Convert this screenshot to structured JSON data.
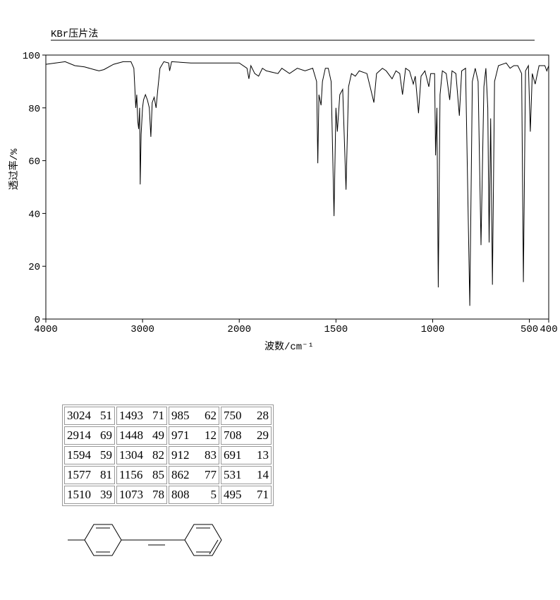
{
  "chart_data": {
    "type": "line",
    "title": "KBr压片法",
    "xlabel": "波数/cm⁻¹",
    "ylabel": "透过率/%",
    "x": [
      4000,
      3900,
      3800,
      3700,
      3600,
      3500,
      3450,
      3400,
      3300,
      3200,
      3120,
      3090,
      3080,
      3070,
      3060,
      3050,
      3040,
      3030,
      3024,
      3015,
      3000,
      2990,
      2970,
      2950,
      2930,
      2914,
      2900,
      2880,
      2860,
      2840,
      2820,
      2780,
      2730,
      2720,
      2700,
      2500,
      2300,
      2100,
      2000,
      1960,
      1950,
      1940,
      1920,
      1900,
      1880,
      1860,
      1800,
      1780,
      1740,
      1700,
      1660,
      1620,
      1600,
      1594,
      1588,
      1577,
      1570,
      1555,
      1540,
      1525,
      1510,
      1500,
      1493,
      1480,
      1465,
      1448,
      1435,
      1420,
      1400,
      1380,
      1340,
      1320,
      1304,
      1290,
      1260,
      1240,
      1210,
      1190,
      1170,
      1156,
      1140,
      1120,
      1100,
      1090,
      1073,
      1060,
      1040,
      1020,
      1010,
      990,
      985,
      978,
      971,
      962,
      950,
      930,
      912,
      900,
      880,
      862,
      850,
      830,
      808,
      795,
      780,
      765,
      750,
      735,
      725,
      715,
      708,
      700,
      691,
      680,
      660,
      620,
      600,
      580,
      560,
      540,
      531,
      520,
      505,
      495,
      485,
      470,
      450,
      420,
      410,
      400
    ],
    "values": [
      96.5,
      97,
      97.5,
      96,
      95.5,
      94.5,
      94,
      94.5,
      96.5,
      97.5,
      97.5,
      95,
      88,
      80,
      85,
      75,
      72,
      80,
      51,
      70,
      80,
      83,
      85,
      83,
      80,
      69,
      82,
      84,
      80,
      88,
      95,
      97.5,
      97,
      94,
      97.5,
      97,
      97,
      97,
      97,
      95,
      91,
      96,
      93,
      92,
      95,
      94,
      93,
      95,
      93,
      95,
      94,
      95,
      90,
      59,
      85,
      81,
      90,
      95,
      95,
      90,
      39,
      80,
      71,
      85,
      87,
      49,
      88,
      93,
      92,
      94,
      93,
      87,
      82,
      93,
      95,
      94,
      91,
      94,
      93,
      85,
      95,
      94,
      89,
      92,
      78,
      92,
      94,
      88,
      93,
      93,
      62,
      80,
      12,
      85,
      94,
      93,
      83,
      94,
      93,
      77,
      94,
      95,
      5,
      90,
      95,
      90,
      28,
      88,
      95,
      80,
      29,
      76,
      13,
      90,
      96,
      97,
      95,
      96,
      96,
      93,
      14,
      94,
      96,
      71,
      93,
      89,
      96,
      96,
      94,
      96
    ],
    "color": "#000000",
    "xlim": [
      4000,
      400
    ],
    "x_scale_break": {
      "at": 2000,
      "factor": 2
    },
    "xticks": [
      4000,
      3000,
      2000,
      1500,
      1000,
      500,
      400
    ],
    "ylim": [
      0,
      100
    ],
    "yticks": [
      0,
      20,
      40,
      60,
      80,
      100
    ]
  },
  "table": {
    "rows": [
      [
        3024,
        51,
        1493,
        71,
        985,
        62,
        750,
        28
      ],
      [
        2914,
        69,
        1448,
        49,
        971,
        12,
        708,
        29
      ],
      [
        1594,
        59,
        1304,
        82,
        912,
        83,
        691,
        13
      ],
      [
        1577,
        81,
        1156,
        85,
        862,
        77,
        531,
        14
      ],
      [
        1510,
        39,
        1073,
        78,
        808,
        5,
        495,
        71
      ]
    ]
  }
}
